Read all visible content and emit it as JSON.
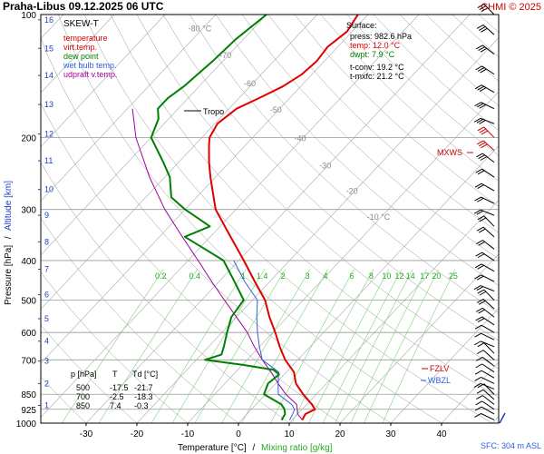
{
  "header": {
    "title": "Praha-Libus   09.12.2025 06 UTC",
    "copyright": "CHMI © 2025"
  },
  "legend": {
    "title": "SKEW-T",
    "items": [
      {
        "label": "temperature",
        "color": "#e00000"
      },
      {
        "label": "virt.temp.",
        "color": "#e00000"
      },
      {
        "label": "dew point",
        "color": "#008000"
      },
      {
        "label": "wet bulb temp.",
        "color": "#3060e0"
      },
      {
        "label": "udpraft v.temp.",
        "color": "#a000a0"
      }
    ]
  },
  "surface": {
    "title": "Surface:",
    "press": "press: 982.6 hPa",
    "temp": "temp: 12.0 °C",
    "dwpt": "dwpt: 7.9 °C",
    "tconv": "t-conv: 19.2 °C",
    "tmxfc": "t-mxfc: 21.2 °C"
  },
  "table": {
    "headers": [
      "p [hPa]",
      "T",
      "Td [°C]"
    ],
    "rows": [
      [
        "500",
        "-17.5",
        "-21.7"
      ],
      [
        "700",
        "-2.5",
        "-18.3"
      ],
      [
        "850",
        "7.4",
        "-0.3"
      ]
    ]
  },
  "labels": {
    "tropo": "Tropo",
    "mxws": "MXWS",
    "fzlv": "FZLV",
    "wbzl": "WBZL",
    "sfc": "SFC: 304 m ASL",
    "xlabel_temp": "Temperature [°C]",
    "xlabel_sep": "/",
    "xlabel_mix": "Mixing ratio [g/kg]",
    "ylabel_left": "Pressure [hPa]",
    "ylabel_sep": "/",
    "ylabel_right": "Altitude [km]"
  },
  "chart_data": {
    "type": "line",
    "pressure_ticks": [
      100,
      200,
      300,
      400,
      500,
      600,
      700,
      850,
      925,
      1000
    ],
    "temperature_ticks": [
      -30,
      -20,
      -10,
      0,
      10,
      20,
      30,
      40
    ],
    "altitude_ticks": [
      {
        "km": 1,
        "p": 905
      },
      {
        "km": 2,
        "p": 800
      },
      {
        "km": 3,
        "p": 705
      },
      {
        "km": 4,
        "p": 630
      },
      {
        "km": 5,
        "p": 555
      },
      {
        "km": 6,
        "p": 485
      },
      {
        "km": 7,
        "p": 420
      },
      {
        "km": 8,
        "p": 360
      },
      {
        "km": 9,
        "p": 310
      },
      {
        "km": 10,
        "p": 268
      },
      {
        "km": 11,
        "p": 228
      },
      {
        "km": 12,
        "p": 196
      },
      {
        "km": 13,
        "p": 166
      },
      {
        "km": 14,
        "p": 141
      },
      {
        "km": 15,
        "p": 121
      },
      {
        "km": 16,
        "p": 103
      }
    ],
    "isotherm_labels": [
      {
        "label": "-80 °C",
        "t": -80,
        "p": 110
      },
      {
        "label": "-70",
        "t": -70,
        "p": 128
      },
      {
        "label": "-60",
        "t": -60,
        "p": 150
      },
      {
        "label": "-50",
        "t": -50,
        "p": 174
      },
      {
        "label": "-40",
        "t": -40,
        "p": 204
      },
      {
        "label": "-30",
        "t": -30,
        "p": 238
      },
      {
        "label": "-20",
        "t": -20,
        "p": 275
      },
      {
        "label": "-10 °C",
        "t": -10,
        "p": 318
      }
    ],
    "mixing_ratios": [
      "0.2",
      "0.4",
      "1",
      "1.4",
      "2",
      "3",
      "4",
      "6",
      "8",
      "10",
      "12",
      "14",
      "17",
      "20",
      "25"
    ],
    "mixing_ratio_values": [
      0.2,
      0.4,
      1,
      1.4,
      2,
      3,
      4,
      6,
      8,
      10,
      12,
      14,
      17,
      20,
      25
    ],
    "temperature_profile": [
      [
        982.6,
        12.0
      ],
      [
        950,
        11.5
      ],
      [
        925,
        12.5
      ],
      [
        900,
        11.0
      ],
      [
        850,
        7.4
      ],
      [
        800,
        4.0
      ],
      [
        750,
        1.5
      ],
      [
        700,
        -2.5
      ],
      [
        650,
        -6.0
      ],
      [
        600,
        -9.5
      ],
      [
        550,
        -13.5
      ],
      [
        500,
        -17.5
      ],
      [
        450,
        -23.0
      ],
      [
        400,
        -29.0
      ],
      [
        350,
        -36.0
      ],
      [
        300,
        -44.0
      ],
      [
        250,
        -51.0
      ],
      [
        230,
        -54.0
      ],
      [
        210,
        -57.0
      ],
      [
        200,
        -58.5
      ],
      [
        185,
        -59.5
      ],
      [
        170,
        -58.5
      ],
      [
        160,
        -56.0
      ],
      [
        150,
        -53.5
      ],
      [
        140,
        -52.0
      ],
      [
        130,
        -51.5
      ],
      [
        120,
        -52.0
      ],
      [
        110,
        -51.0
      ],
      [
        100,
        -52.0
      ]
    ],
    "dewpoint_profile": [
      [
        982.6,
        7.9
      ],
      [
        950,
        7.5
      ],
      [
        925,
        6.5
      ],
      [
        900,
        5.0
      ],
      [
        850,
        -0.3
      ],
      [
        800,
        -1.5
      ],
      [
        760,
        -1.0
      ],
      [
        740,
        -3.0
      ],
      [
        720,
        -10.0
      ],
      [
        700,
        -18.3
      ],
      [
        680,
        -16.0
      ],
      [
        650,
        -17.0
      ],
      [
        600,
        -19.0
      ],
      [
        550,
        -21.0
      ],
      [
        500,
        -21.7
      ],
      [
        450,
        -27.0
      ],
      [
        400,
        -33.0
      ],
      [
        370,
        -40.0
      ],
      [
        350,
        -45.0
      ],
      [
        330,
        -42.0
      ],
      [
        300,
        -50.0
      ],
      [
        280,
        -55.0
      ],
      [
        250,
        -59.0
      ],
      [
        230,
        -63.0
      ],
      [
        200,
        -70.0
      ],
      [
        180,
        -72.0
      ],
      [
        170,
        -74.0
      ],
      [
        160,
        -74.0
      ],
      [
        150,
        -73.0
      ],
      [
        130,
        -72.0
      ],
      [
        115,
        -71.5
      ],
      [
        100,
        -70.0
      ]
    ],
    "wetbulb_profile": [
      [
        982.6,
        9.5
      ],
      [
        950,
        9.0
      ],
      [
        925,
        8.5
      ],
      [
        900,
        7.0
      ],
      [
        850,
        2.5
      ],
      [
        800,
        0.5
      ],
      [
        750,
        -1.5
      ],
      [
        700,
        -7.0
      ],
      [
        650,
        -10.0
      ],
      [
        600,
        -13.0
      ],
      [
        550,
        -16.0
      ],
      [
        500,
        -19.0
      ],
      [
        450,
        -25.0
      ],
      [
        400,
        -31.0
      ]
    ],
    "parcel_profile": [
      [
        982.6,
        12.0
      ],
      [
        950,
        10.0
      ],
      [
        900,
        8.0
      ],
      [
        850,
        4.0
      ],
      [
        800,
        0.5
      ],
      [
        750,
        -3.0
      ],
      [
        700,
        -7.0
      ],
      [
        650,
        -11.0
      ],
      [
        600,
        -15.0
      ],
      [
        550,
        -20.0
      ],
      [
        500,
        -25.5
      ],
      [
        450,
        -31.5
      ],
      [
        400,
        -38.0
      ],
      [
        350,
        -45.5
      ],
      [
        300,
        -54.0
      ],
      [
        250,
        -63.0
      ],
      [
        200,
        -73.0
      ],
      [
        170,
        -79.0
      ]
    ],
    "tropopause_p": 172,
    "mxws_p": 205,
    "fzlv_p": 778,
    "wbzl_p": 804,
    "wind_pressures": [
      100,
      112,
      125,
      140,
      155,
      170,
      185,
      200,
      215,
      230,
      250,
      270,
      290,
      310,
      330,
      350,
      375,
      400,
      425,
      450,
      475,
      500,
      525,
      550,
      575,
      600,
      625,
      650,
      675,
      700,
      725,
      750,
      775,
      800,
      825,
      850,
      875,
      900,
      925,
      950,
      982
    ]
  }
}
